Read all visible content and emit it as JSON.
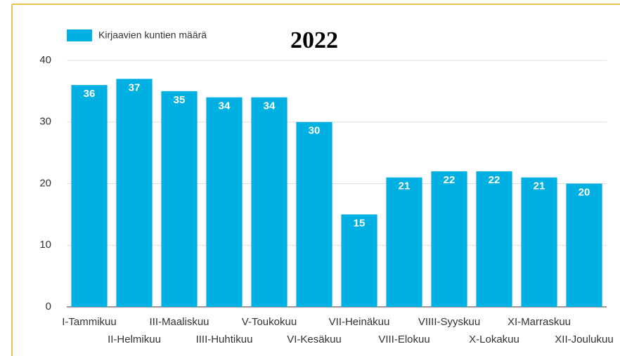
{
  "chart_data": {
    "type": "bar",
    "title": "2022",
    "legend": "Kirjaavien kuntien määrä",
    "legend_position": "top-left",
    "categories": [
      "I-Tammikuu",
      "II-Helmikuu",
      "III-Maaliskuu",
      "IIII-Huhtikuu",
      "V-Toukokuu",
      "VI-Kesäkuu",
      "VII-Heinäkuu",
      "VIII-Elokuu",
      "VIIII-Syyskuu",
      "X-Lokakuu",
      "XI-Marraskuu",
      "XII-Joulukuu"
    ],
    "values": [
      36,
      37,
      35,
      34,
      34,
      30,
      15,
      21,
      22,
      22,
      21,
      20
    ],
    "color": "#00b0e2",
    "ylim": [
      0,
      40
    ],
    "yticks": [
      0,
      10,
      20,
      30,
      40
    ],
    "grid": true
  }
}
